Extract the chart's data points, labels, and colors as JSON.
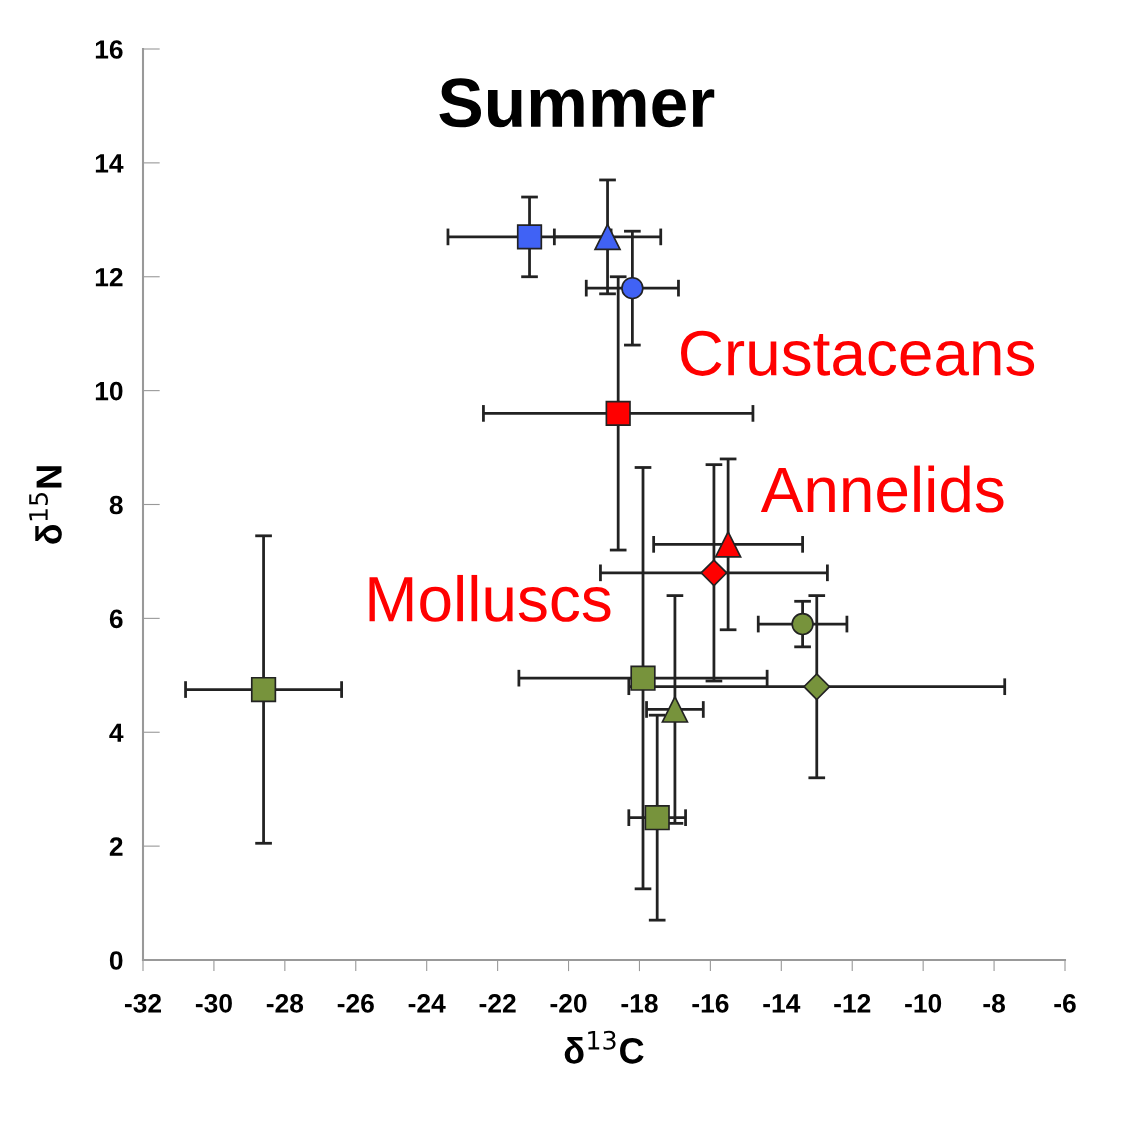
{
  "chart_data": {
    "type": "scatter",
    "title": "Summer",
    "xlabel": "δ$^{13}$C",
    "ylabel": "δ$^{15}$N",
    "xlim": [
      -32,
      -6
    ],
    "xticks": [
      -32,
      -30,
      -28,
      -26,
      -24,
      -22,
      -20,
      -18,
      -16,
      -14,
      -12,
      -10,
      -8,
      -6
    ],
    "ylim": [
      0,
      16
    ],
    "yticks": [
      0,
      2,
      4,
      6,
      8,
      10,
      12,
      14,
      16
    ],
    "grid": false,
    "legend": false,
    "annotations": [
      "Crustaceans",
      "Annelids",
      "Molluscs"
    ],
    "series": [
      {
        "color": "#4062f5",
        "marker": "square",
        "x": [
          -21.1
        ],
        "values": [
          12.7
        ],
        "errors": [
          0.7
        ],
        "xerrors": [
          2.3
        ]
      },
      {
        "color": "#4062f5",
        "marker": "triangle",
        "x": [
          -18.9
        ],
        "values": [
          12.7
        ],
        "errors": [
          1.0
        ],
        "xerrors": [
          1.5
        ]
      },
      {
        "color": "#4062f5",
        "marker": "circle",
        "x": [
          -18.2
        ],
        "values": [
          11.8
        ],
        "errors": [
          1.0
        ],
        "xerrors": [
          1.3
        ]
      },
      {
        "color": "#ff0000",
        "marker": "square",
        "x": [
          -18.6
        ],
        "values": [
          9.6
        ],
        "errors": [
          2.4
        ],
        "xerrors": [
          3.8
        ]
      },
      {
        "color": "#ff0000",
        "marker": "triangle",
        "x": [
          -15.5
        ],
        "values": [
          7.3
        ],
        "errors": [
          1.5
        ],
        "xerrors": [
          2.1
        ]
      },
      {
        "color": "#ff0000",
        "marker": "diamond",
        "x": [
          -15.9
        ],
        "values": [
          6.8
        ],
        "errors": [
          1.9
        ],
        "xerrors": [
          3.2
        ]
      },
      {
        "color": "#77933c",
        "marker": "circle",
        "x": [
          -13.4
        ],
        "values": [
          5.9
        ],
        "errors": [
          0.4
        ],
        "xerrors": [
          1.25
        ]
      },
      {
        "color": "#77933c",
        "marker": "diamond",
        "x": [
          -13.0
        ],
        "values": [
          4.8
        ],
        "errors": [
          1.6
        ],
        "xerrors": [
          5.3
        ]
      },
      {
        "color": "#77933c",
        "marker": "square",
        "x": [
          -17.9
        ],
        "values": [
          4.95
        ],
        "errors": [
          3.7
        ],
        "xerrors": [
          3.5
        ]
      },
      {
        "color": "#77933c",
        "marker": "triangle",
        "x": [
          -17.0
        ],
        "values": [
          4.4
        ],
        "errors": [
          2.0
        ],
        "xerrors": [
          0.8
        ]
      },
      {
        "color": "#77933c",
        "marker": "square",
        "x": [
          -17.5
        ],
        "values": [
          2.5
        ],
        "errors": [
          1.8
        ],
        "xerrors": [
          0.8
        ]
      },
      {
        "color": "#77933c",
        "marker": "square",
        "x": [
          -28.6
        ],
        "values": [
          4.75
        ],
        "errors": [
          2.7
        ],
        "xerrors": [
          2.2
        ]
      }
    ]
  }
}
